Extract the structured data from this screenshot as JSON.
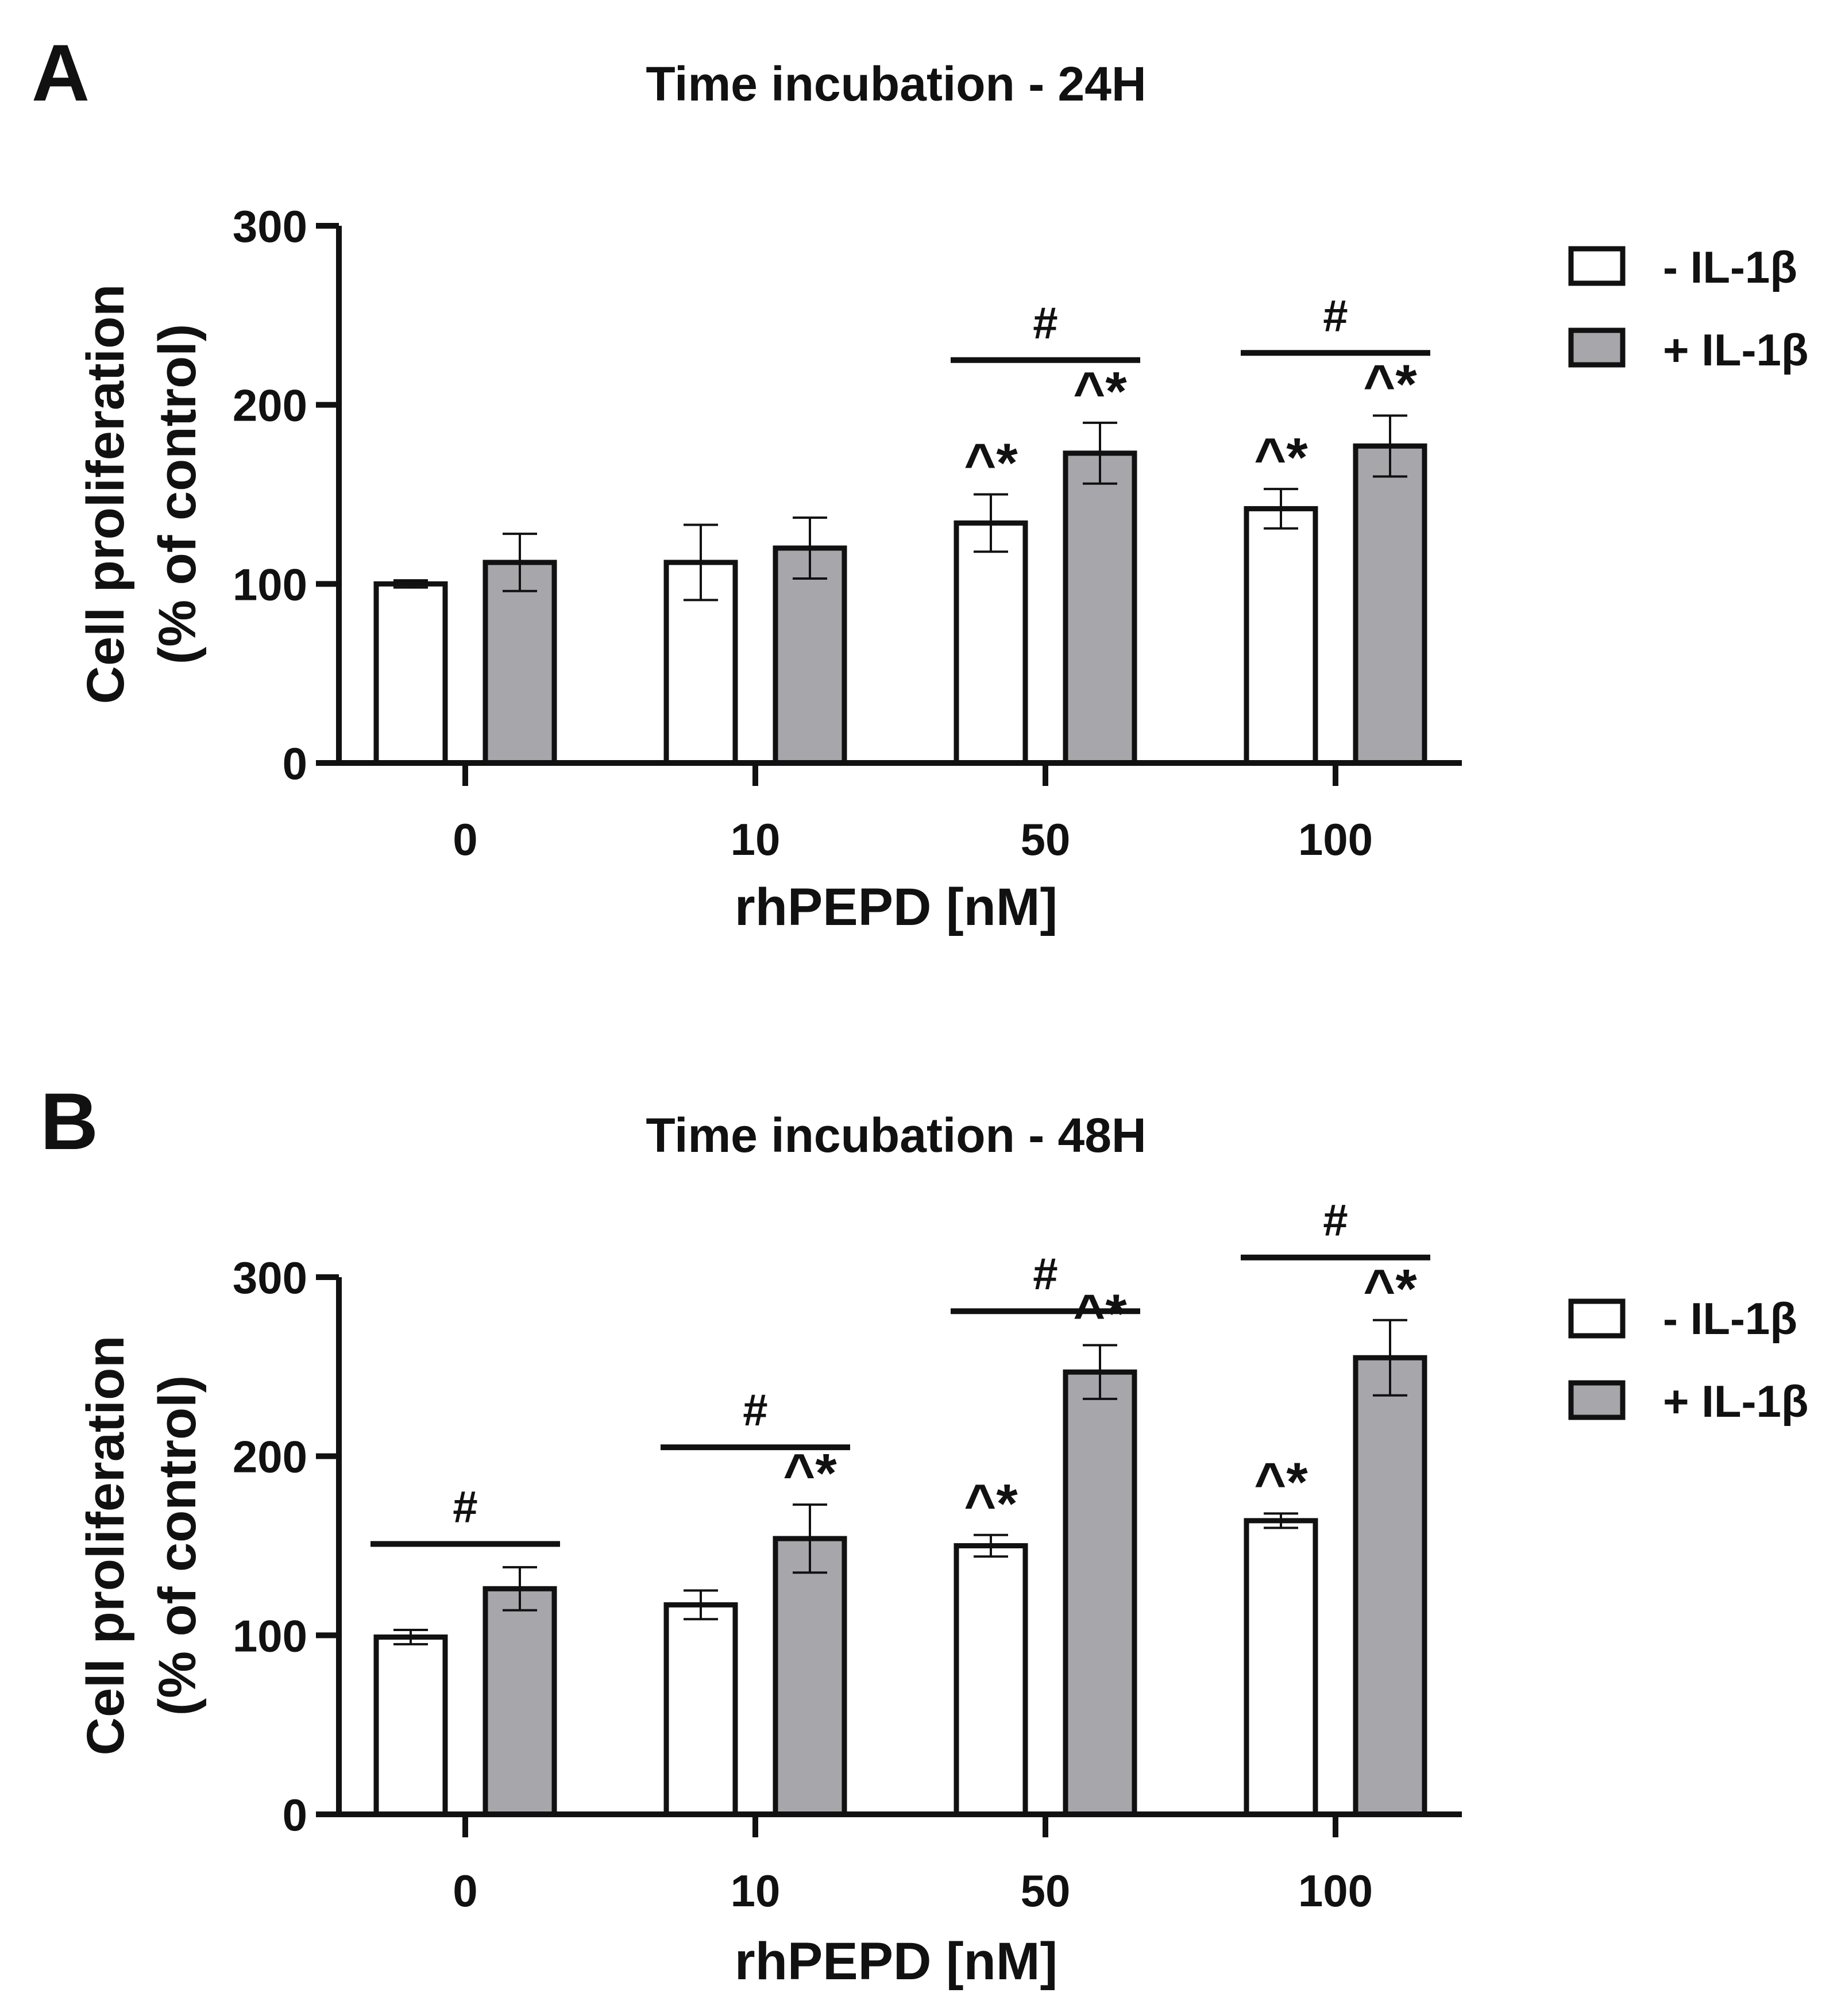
{
  "chart_data": [
    {
      "type": "bar",
      "panel": "A",
      "title": "Time incubation - 24H",
      "xlabel": "rhPEPD [nM]",
      "ylabel_line1": "Cell proliferation",
      "ylabel_line2": "(% of control)",
      "categories": [
        "0",
        "10",
        "50",
        "100"
      ],
      "ylim": [
        0,
        300
      ],
      "yticks": [
        0,
        100,
        200,
        300
      ],
      "ytick_labels": [
        "0",
        "100",
        "200",
        "300"
      ],
      "legend_position": "top-right",
      "series": [
        {
          "name": "- IL-1β",
          "color": "#ffffff",
          "values": [
            100,
            112,
            134,
            142
          ],
          "errors": [
            2,
            21,
            16,
            11
          ]
        },
        {
          "name": "+ IL-1β",
          "color": "#a7a6ab",
          "values": [
            112,
            120,
            173,
            177
          ],
          "errors": [
            16,
            17,
            17,
            17
          ]
        }
      ],
      "annotations": [
        {
          "category": 2,
          "series": 0,
          "text": "^*"
        },
        {
          "category": 2,
          "series": 1,
          "text": "^*"
        },
        {
          "category": 3,
          "series": 0,
          "text": "^*"
        },
        {
          "category": 3,
          "series": 1,
          "text": "^*"
        }
      ],
      "brackets": [
        {
          "category": 2,
          "text": "#",
          "y": 225
        },
        {
          "category": 3,
          "text": "#",
          "y": 229
        }
      ]
    },
    {
      "type": "bar",
      "panel": "B",
      "title": "Time incubation - 48H",
      "xlabel": "rhPEPD [nM]",
      "ylabel_line1": "Cell proliferation",
      "ylabel_line2": "(% of control)",
      "categories": [
        "0",
        "10",
        "50",
        "100"
      ],
      "ylim": [
        0,
        300
      ],
      "yticks": [
        0,
        100,
        200,
        300
      ],
      "ytick_labels": [
        "0",
        "100",
        "200",
        "300"
      ],
      "legend_position": "top-right",
      "series": [
        {
          "name": "- IL-1β",
          "color": "#ffffff",
          "values": [
            99,
            117,
            150,
            164
          ],
          "errors": [
            4,
            8,
            6,
            4
          ]
        },
        {
          "name": "+ IL-1β",
          "color": "#a7a6ab",
          "values": [
            126,
            154,
            247,
            255
          ],
          "errors": [
            12,
            19,
            15,
            21
          ]
        }
      ],
      "annotations": [
        {
          "category": 1,
          "series": 1,
          "text": "^*"
        },
        {
          "category": 2,
          "series": 0,
          "text": "^*"
        },
        {
          "category": 2,
          "series": 1,
          "text": "^*"
        },
        {
          "category": 3,
          "series": 0,
          "text": "^*"
        },
        {
          "category": 3,
          "series": 1,
          "text": "^*"
        }
      ],
      "brackets": [
        {
          "category": 0,
          "text": "#",
          "y": 151
        },
        {
          "category": 1,
          "text": "#",
          "y": 205
        },
        {
          "category": 2,
          "text": "#",
          "y": 281
        },
        {
          "category": 3,
          "text": "#",
          "y": 311
        }
      ]
    }
  ]
}
